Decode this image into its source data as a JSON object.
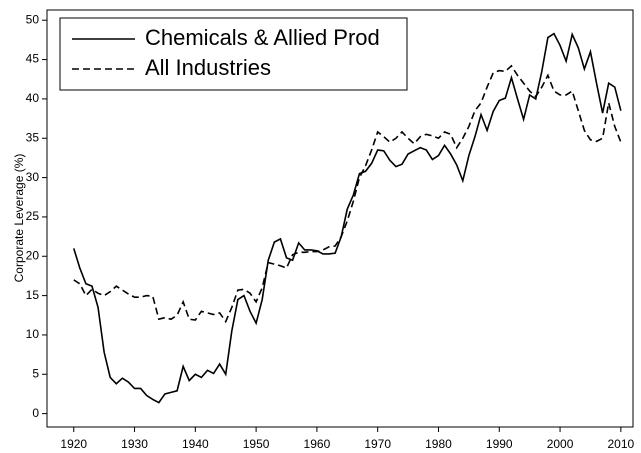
{
  "chart_data": {
    "type": "line",
    "ylabel": "Corporate Leverage (%)",
    "legend": "upper left",
    "xlim": [
      1915.6,
      2012
    ],
    "ylim": [
      -1.7,
      51.3
    ],
    "xticks": [
      1920,
      1930,
      1940,
      1950,
      1960,
      1970,
      1980,
      1990,
      2000,
      2010
    ],
    "yticks": [
      0,
      5,
      10,
      15,
      20,
      25,
      30,
      35,
      40,
      45,
      50
    ],
    "x": [
      1920,
      1921,
      1922,
      1923,
      1924,
      1925,
      1926,
      1927,
      1928,
      1929,
      1930,
      1931,
      1932,
      1933,
      1934,
      1935,
      1936,
      1937,
      1938,
      1939,
      1940,
      1941,
      1942,
      1943,
      1944,
      1945,
      1946,
      1947,
      1948,
      1949,
      1950,
      1951,
      1952,
      1953,
      1954,
      1955,
      1956,
      1957,
      1958,
      1959,
      1960,
      1961,
      1962,
      1963,
      1964,
      1965,
      1966,
      1967,
      1968,
      1969,
      1970,
      1971,
      1972,
      1973,
      1974,
      1975,
      1976,
      1977,
      1978,
      1979,
      1980,
      1981,
      1982,
      1983,
      1984,
      1985,
      1986,
      1987,
      1988,
      1989,
      1990,
      1991,
      1992,
      1993,
      1994,
      1995,
      1996,
      1997,
      1998,
      1999,
      2000,
      2001,
      2002,
      2003,
      2004,
      2005,
      2006,
      2007,
      2008,
      2009,
      2010
    ],
    "series": [
      {
        "name": "Chemicals & Allied Prod",
        "color": "#000000",
        "dash": "solid",
        "values": [
          21,
          18.5,
          16.5,
          16.2,
          13.5,
          7.8,
          4.6,
          3.8,
          4.5,
          4.0,
          3.2,
          3.2,
          2.3,
          1.8,
          1.4,
          2.5,
          2.7,
          2.9,
          6.0,
          4.2,
          5.0,
          4.6,
          5.5,
          5.1,
          6.3,
          5.0,
          10.5,
          14.5,
          15.0,
          13.0,
          11.5,
          14.5,
          19.5,
          21.8,
          22.2,
          19.8,
          19.5,
          21.7,
          20.8,
          20.8,
          20.7,
          20.3,
          20.3,
          20.4,
          22.5,
          26.0,
          27.8,
          30.5,
          30.8,
          31.8,
          33.5,
          33.4,
          32.2,
          31.4,
          31.7,
          33.0,
          33.4,
          33.8,
          33.5,
          32.3,
          32.8,
          34.1,
          33.0,
          31.6,
          29.6,
          32.8,
          35.2,
          38.0,
          36.0,
          38.4,
          39.8,
          40.1,
          42.7,
          40.0,
          37.4,
          40.5,
          40.0,
          43.5,
          47.8,
          48.3,
          46.8,
          44.8,
          48.2,
          46.5,
          43.8,
          46.0,
          42.0,
          38.2,
          42.0,
          41.5,
          38.5
        ]
      },
      {
        "name": "All Industries",
        "color": "#000000",
        "dash": "dashed",
        "values": [
          17.0,
          16.5,
          15.0,
          15.8,
          15.3,
          15.0,
          15.5,
          16.2,
          15.7,
          15.2,
          14.8,
          14.8,
          15.0,
          14.9,
          12.0,
          12.2,
          12.0,
          12.5,
          14.2,
          12.0,
          11.9,
          13.0,
          12.8,
          12.6,
          12.8,
          11.7,
          13.5,
          15.7,
          15.8,
          15.3,
          14.2,
          16.0,
          19.2,
          19.0,
          18.8,
          18.5,
          20.2,
          20.5,
          20.5,
          20.6,
          20.6,
          20.8,
          21.2,
          21.3,
          22.5,
          24.5,
          27.0,
          30.0,
          31.5,
          33.5,
          35.8,
          35.2,
          34.5,
          35.0,
          35.8,
          35.0,
          34.3,
          35.2,
          35.5,
          35.3,
          35.0,
          35.8,
          35.5,
          33.8,
          35.0,
          36.5,
          38.5,
          39.5,
          41.5,
          43.3,
          43.6,
          43.5,
          44.2,
          43.0,
          42.0,
          41.0,
          40.3,
          41.5,
          43.0,
          41.0,
          40.5,
          40.5,
          41.0,
          38.5,
          36.0,
          34.8,
          34.6,
          35.0,
          39.5,
          36.5,
          34.5
        ]
      }
    ]
  }
}
